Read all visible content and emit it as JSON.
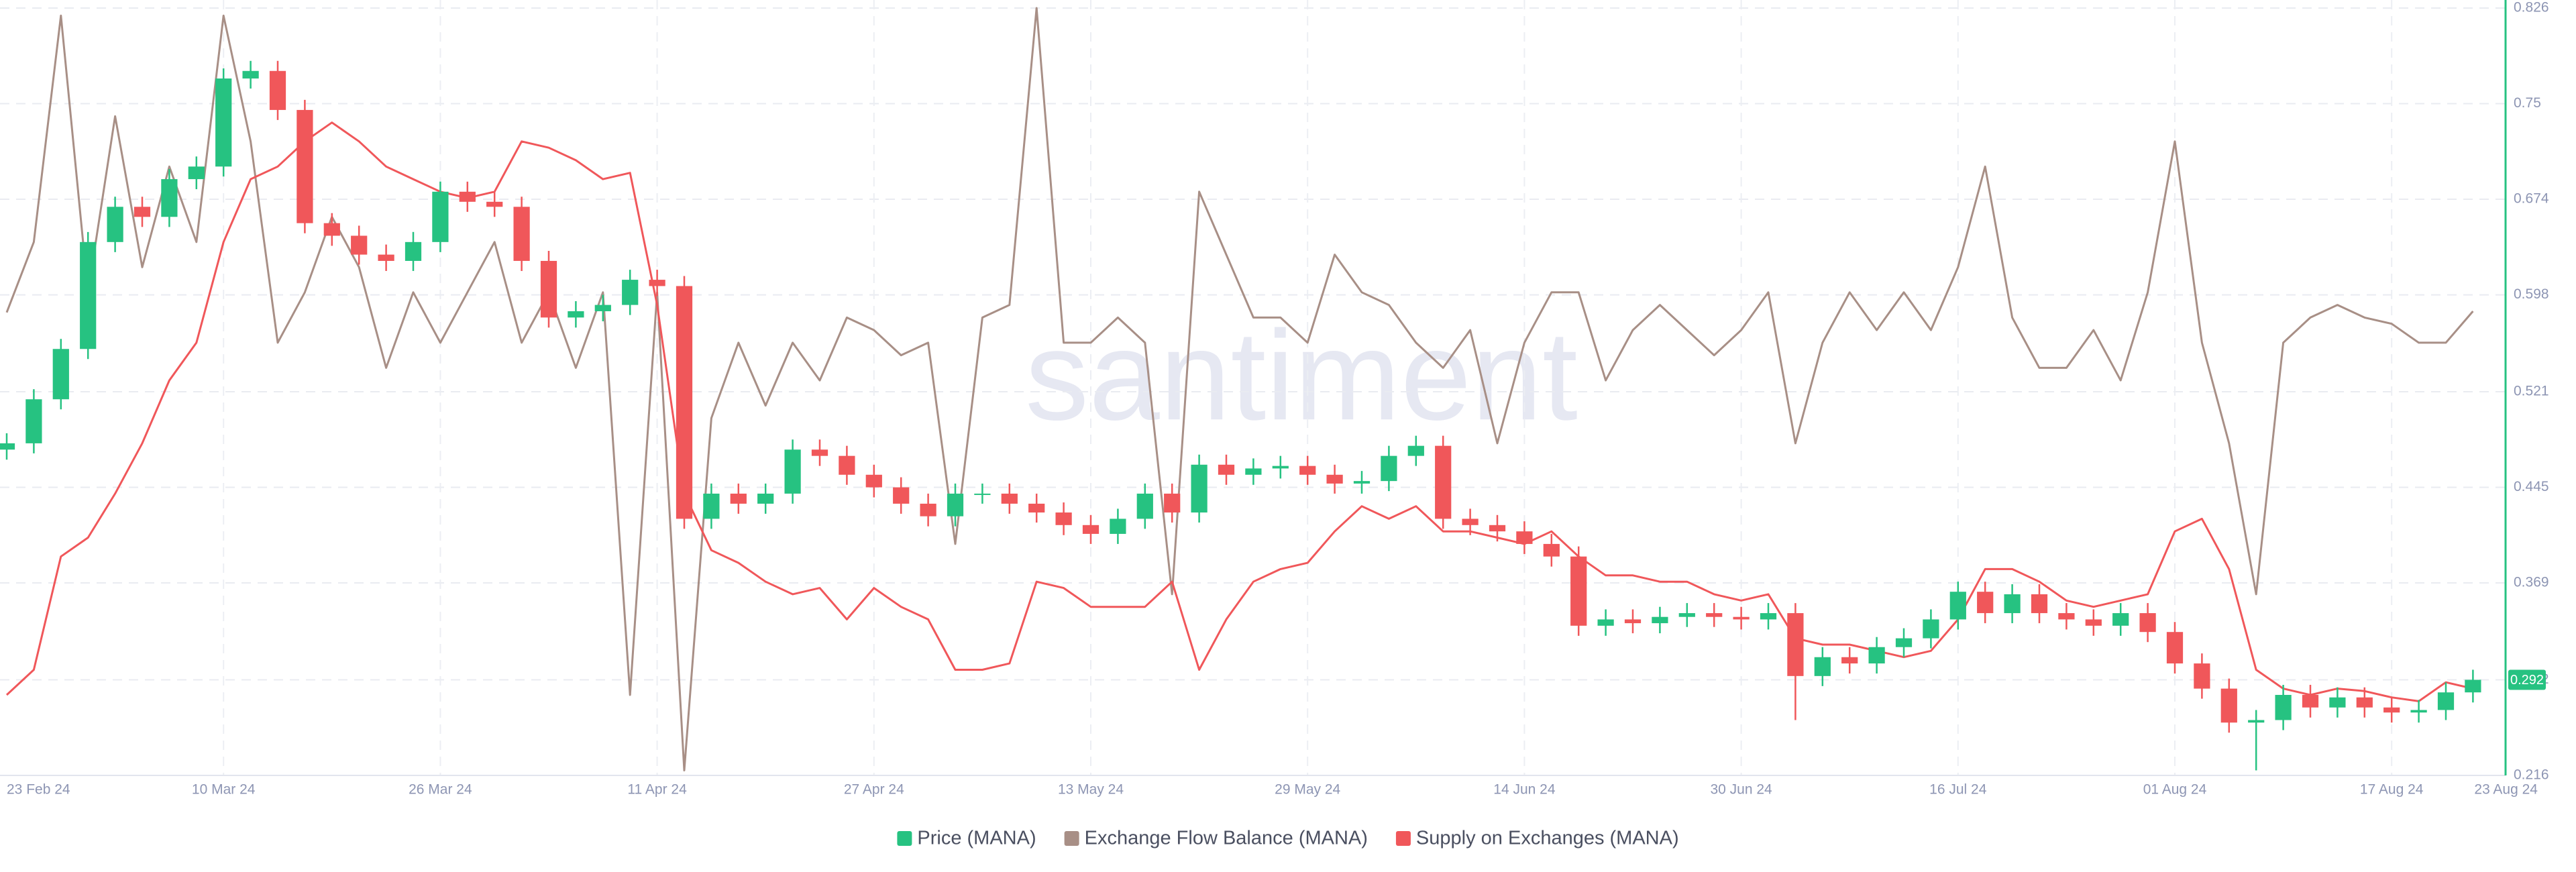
{
  "chart_data": {
    "type": "candlestick",
    "watermark": "santiment",
    "x": [
      "2024-02-23",
      "2024-02-25",
      "2024-02-27",
      "2024-02-29",
      "2024-03-02",
      "2024-03-04",
      "2024-03-06",
      "2024-03-08",
      "2024-03-10",
      "2024-03-12",
      "2024-03-14",
      "2024-03-16",
      "2024-03-18",
      "2024-03-20",
      "2024-03-22",
      "2024-03-24",
      "2024-03-26",
      "2024-03-28",
      "2024-03-30",
      "2024-04-01",
      "2024-04-03",
      "2024-04-05",
      "2024-04-07",
      "2024-04-09",
      "2024-04-11",
      "2024-04-13",
      "2024-04-15",
      "2024-04-17",
      "2024-04-19",
      "2024-04-21",
      "2024-04-23",
      "2024-04-25",
      "2024-04-27",
      "2024-04-29",
      "2024-05-01",
      "2024-05-03",
      "2024-05-05",
      "2024-05-07",
      "2024-05-09",
      "2024-05-11",
      "2024-05-13",
      "2024-05-15",
      "2024-05-17",
      "2024-05-19",
      "2024-05-21",
      "2024-05-23",
      "2024-05-25",
      "2024-05-27",
      "2024-05-29",
      "2024-05-31",
      "2024-06-02",
      "2024-06-04",
      "2024-06-06",
      "2024-06-08",
      "2024-06-10",
      "2024-06-12",
      "2024-06-14",
      "2024-06-16",
      "2024-06-18",
      "2024-06-20",
      "2024-06-22",
      "2024-06-24",
      "2024-06-26",
      "2024-06-28",
      "2024-06-30",
      "2024-07-02",
      "2024-07-04",
      "2024-07-06",
      "2024-07-08",
      "2024-07-10",
      "2024-07-12",
      "2024-07-14",
      "2024-07-16",
      "2024-07-18",
      "2024-07-20",
      "2024-07-22",
      "2024-07-24",
      "2024-07-26",
      "2024-07-28",
      "2024-07-30",
      "2024-08-01",
      "2024-08-03",
      "2024-08-05",
      "2024-08-07",
      "2024-08-09",
      "2024-08-11",
      "2024-08-13",
      "2024-08-15",
      "2024-08-17",
      "2024-08-19",
      "2024-08-21",
      "2024-08-23"
    ],
    "xticks": [
      {
        "value": "2024-02-23",
        "label": "23 Feb 24"
      },
      {
        "value": "2024-03-10",
        "label": "10 Mar 24"
      },
      {
        "value": "2024-03-26",
        "label": "26 Mar 24"
      },
      {
        "value": "2024-04-11",
        "label": "11 Apr 24"
      },
      {
        "value": "2024-04-27",
        "label": "27 Apr 24"
      },
      {
        "value": "2024-05-13",
        "label": "13 May 24"
      },
      {
        "value": "2024-05-29",
        "label": "29 May 24"
      },
      {
        "value": "2024-06-14",
        "label": "14 Jun 24"
      },
      {
        "value": "2024-06-30",
        "label": "30 Jun 24"
      },
      {
        "value": "2024-07-16",
        "label": "16 Jul 24"
      },
      {
        "value": "2024-08-01",
        "label": "01 Aug 24"
      },
      {
        "value": "2024-08-17",
        "label": "17 Aug 24"
      },
      {
        "value": "2024-08-23",
        "label": "23 Aug 24"
      }
    ],
    "ylim": [
      0.216,
      0.826
    ],
    "yticks": [
      0.216,
      0.292,
      0.369,
      0.445,
      0.521,
      0.598,
      0.674,
      0.75,
      0.826
    ],
    "price_label": 0.292,
    "grid": true,
    "series": [
      {
        "name": "Price (MANA)",
        "type": "candlestick",
        "color": "#26c281",
        "up_color": "#26c281",
        "down_color": "#f0575a",
        "open": [
          0.475,
          0.48,
          0.515,
          0.555,
          0.64,
          0.668,
          0.66,
          0.69,
          0.7,
          0.77,
          0.776,
          0.745,
          0.655,
          0.645,
          0.63,
          0.625,
          0.64,
          0.68,
          0.672,
          0.668,
          0.625,
          0.58,
          0.585,
          0.59,
          0.61,
          0.605,
          0.42,
          0.44,
          0.432,
          0.44,
          0.475,
          0.47,
          0.455,
          0.445,
          0.432,
          0.422,
          0.44,
          0.44,
          0.432,
          0.425,
          0.415,
          0.408,
          0.42,
          0.44,
          0.425,
          0.463,
          0.455,
          0.46,
          0.462,
          0.455,
          0.448,
          0.45,
          0.47,
          0.478,
          0.42,
          0.415,
          0.41,
          0.4,
          0.39,
          0.335,
          0.34,
          0.337,
          0.342,
          0.345,
          0.342,
          0.34,
          0.345,
          0.295,
          0.31,
          0.305,
          0.318,
          0.325,
          0.34,
          0.362,
          0.345,
          0.36,
          0.345,
          0.34,
          0.335,
          0.345,
          0.33,
          0.305,
          0.285,
          0.258,
          0.26,
          0.28,
          0.27,
          0.278,
          0.27,
          0.266,
          0.268,
          0.282
        ],
        "high": [
          0.488,
          0.523,
          0.563,
          0.648,
          0.676,
          0.676,
          0.698,
          0.708,
          0.778,
          0.784,
          0.784,
          0.753,
          0.663,
          0.653,
          0.638,
          0.648,
          0.688,
          0.688,
          0.68,
          0.676,
          0.633,
          0.593,
          0.598,
          0.618,
          0.618,
          0.613,
          0.448,
          0.448,
          0.448,
          0.483,
          0.483,
          0.478,
          0.463,
          0.453,
          0.44,
          0.448,
          0.448,
          0.448,
          0.44,
          0.433,
          0.423,
          0.428,
          0.448,
          0.448,
          0.471,
          0.471,
          0.468,
          0.47,
          0.47,
          0.463,
          0.458,
          0.478,
          0.486,
          0.486,
          0.428,
          0.423,
          0.418,
          0.408,
          0.398,
          0.348,
          0.348,
          0.35,
          0.353,
          0.353,
          0.35,
          0.353,
          0.353,
          0.318,
          0.318,
          0.326,
          0.333,
          0.348,
          0.37,
          0.37,
          0.368,
          0.368,
          0.353,
          0.348,
          0.353,
          0.353,
          0.338,
          0.313,
          0.293,
          0.268,
          0.288,
          0.288,
          0.286,
          0.286,
          0.278,
          0.276,
          0.29,
          0.3
        ],
        "low": [
          0.467,
          0.472,
          0.507,
          0.547,
          0.632,
          0.652,
          0.652,
          0.682,
          0.692,
          0.762,
          0.737,
          0.647,
          0.637,
          0.622,
          0.617,
          0.617,
          0.632,
          0.664,
          0.66,
          0.617,
          0.572,
          0.572,
          0.577,
          0.582,
          0.597,
          0.412,
          0.412,
          0.424,
          0.424,
          0.432,
          0.462,
          0.447,
          0.437,
          0.424,
          0.414,
          0.414,
          0.432,
          0.424,
          0.417,
          0.407,
          0.4,
          0.4,
          0.412,
          0.417,
          0.417,
          0.447,
          0.447,
          0.452,
          0.447,
          0.44,
          0.44,
          0.442,
          0.462,
          0.412,
          0.407,
          0.402,
          0.392,
          0.382,
          0.327,
          0.327,
          0.329,
          0.329,
          0.334,
          0.334,
          0.332,
          0.332,
          0.26,
          0.287,
          0.297,
          0.297,
          0.31,
          0.317,
          0.332,
          0.337,
          0.337,
          0.337,
          0.332,
          0.327,
          0.327,
          0.322,
          0.297,
          0.277,
          0.25,
          0.22,
          0.252,
          0.262,
          0.262,
          0.262,
          0.258,
          0.258,
          0.26,
          0.274
        ],
        "close": [
          0.48,
          0.515,
          0.555,
          0.64,
          0.668,
          0.66,
          0.69,
          0.7,
          0.77,
          0.776,
          0.745,
          0.655,
          0.645,
          0.63,
          0.625,
          0.64,
          0.68,
          0.672,
          0.668,
          0.625,
          0.58,
          0.585,
          0.59,
          0.61,
          0.605,
          0.42,
          0.44,
          0.432,
          0.44,
          0.475,
          0.47,
          0.455,
          0.445,
          0.432,
          0.422,
          0.44,
          0.44,
          0.432,
          0.425,
          0.415,
          0.408,
          0.42,
          0.44,
          0.425,
          0.463,
          0.455,
          0.46,
          0.462,
          0.455,
          0.448,
          0.45,
          0.47,
          0.478,
          0.42,
          0.415,
          0.41,
          0.4,
          0.39,
          0.335,
          0.34,
          0.337,
          0.342,
          0.345,
          0.342,
          0.34,
          0.345,
          0.295,
          0.31,
          0.305,
          0.318,
          0.325,
          0.34,
          0.362,
          0.345,
          0.36,
          0.345,
          0.34,
          0.335,
          0.345,
          0.33,
          0.305,
          0.285,
          0.258,
          0.26,
          0.28,
          0.27,
          0.278,
          0.27,
          0.266,
          0.268,
          0.282,
          0.292
        ]
      },
      {
        "name": "Exchange Flow Balance (MANA)",
        "type": "line",
        "color": "#a88f86",
        "values": [
          0.584,
          0.64,
          0.82,
          0.6,
          0.74,
          0.62,
          0.7,
          0.64,
          0.82,
          0.72,
          0.56,
          0.6,
          0.66,
          0.62,
          0.54,
          0.6,
          0.56,
          0.6,
          0.64,
          0.56,
          0.6,
          0.54,
          0.6,
          0.28,
          0.6,
          0.22,
          0.5,
          0.56,
          0.51,
          0.56,
          0.53,
          0.58,
          0.57,
          0.55,
          0.56,
          0.4,
          0.58,
          0.59,
          0.826,
          0.56,
          0.56,
          0.58,
          0.56,
          0.36,
          0.68,
          0.63,
          0.58,
          0.58,
          0.56,
          0.63,
          0.6,
          0.59,
          0.56,
          0.54,
          0.57,
          0.48,
          0.56,
          0.6,
          0.6,
          0.53,
          0.57,
          0.59,
          0.57,
          0.55,
          0.57,
          0.6,
          0.48,
          0.56,
          0.6,
          0.57,
          0.6,
          0.57,
          0.62,
          0.7,
          0.58,
          0.54,
          0.54,
          0.57,
          0.53,
          0.6,
          0.72,
          0.56,
          0.48,
          0.36,
          0.56,
          0.58,
          0.59,
          0.58,
          0.575,
          0.56,
          0.56,
          0.585
        ]
      },
      {
        "name": "Supply on Exchanges (MANA)",
        "type": "line",
        "color": "#f0575a",
        "values": [
          0.28,
          0.3,
          0.39,
          0.405,
          0.44,
          0.48,
          0.53,
          0.56,
          0.64,
          0.69,
          0.7,
          0.72,
          0.735,
          0.72,
          0.7,
          0.69,
          0.68,
          0.675,
          0.68,
          0.72,
          0.715,
          0.705,
          0.69,
          0.695,
          0.59,
          0.44,
          0.395,
          0.385,
          0.37,
          0.36,
          0.365,
          0.34,
          0.365,
          0.35,
          0.34,
          0.3,
          0.3,
          0.305,
          0.37,
          0.365,
          0.35,
          0.35,
          0.35,
          0.37,
          0.3,
          0.34,
          0.37,
          0.38,
          0.385,
          0.41,
          0.43,
          0.42,
          0.43,
          0.41,
          0.41,
          0.405,
          0.4,
          0.41,
          0.39,
          0.375,
          0.375,
          0.37,
          0.37,
          0.36,
          0.355,
          0.36,
          0.325,
          0.32,
          0.32,
          0.315,
          0.31,
          0.315,
          0.34,
          0.38,
          0.38,
          0.37,
          0.355,
          0.35,
          0.355,
          0.36,
          0.41,
          0.42,
          0.38,
          0.3,
          0.285,
          0.28,
          0.285,
          0.283,
          0.278,
          0.275,
          0.29,
          0.285
        ]
      }
    ]
  }
}
